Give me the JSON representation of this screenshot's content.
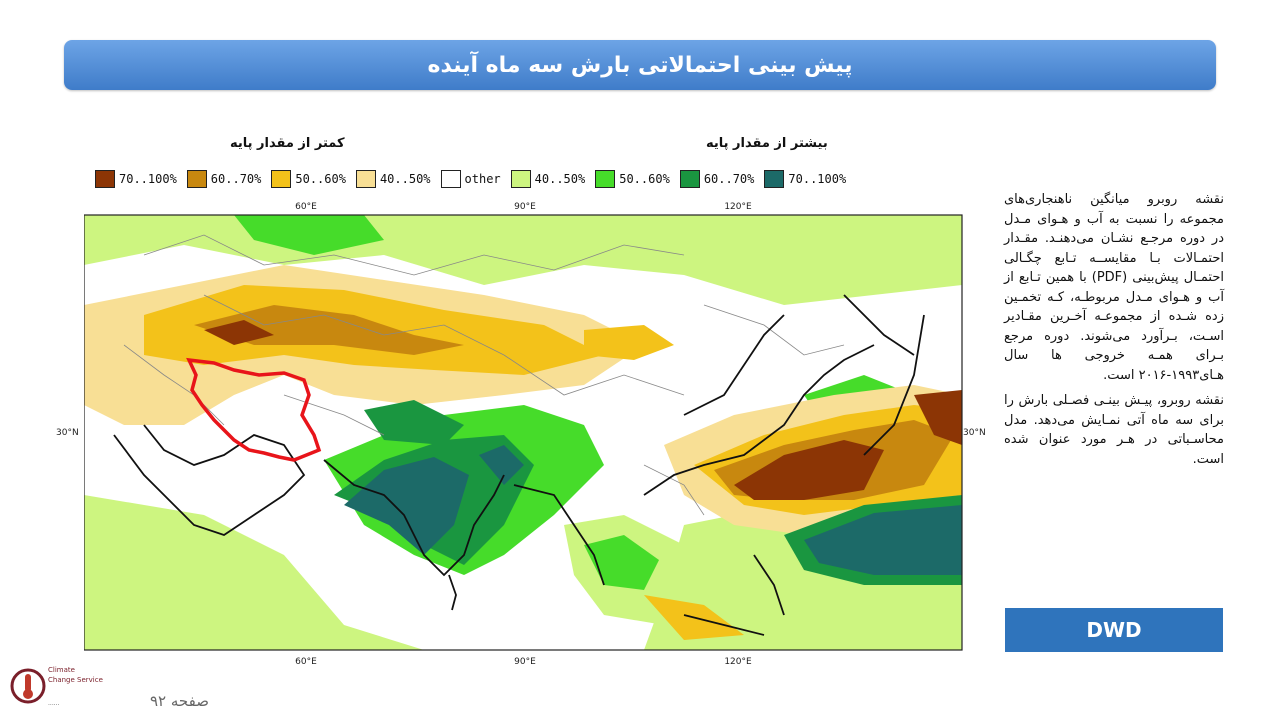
{
  "title": "پیش بینی احتمالاتی بارش سه ماه آینده",
  "legend": {
    "below_label": "کمتر از مقدار پایه",
    "above_label": "بیشتر از مقدار پایه",
    "items": [
      {
        "label": "70..100%",
        "color": "#8c3505"
      },
      {
        "label": "60..70%",
        "color": "#c8880f"
      },
      {
        "label": "50..60%",
        "color": "#f3c21a"
      },
      {
        "label": "40..50%",
        "color": "#f8df95"
      },
      {
        "label": "other",
        "color": "#ffffff"
      },
      {
        "label": "40..50%",
        "color": "#cdf580"
      },
      {
        "label": "50..60%",
        "color": "#46dc2a"
      },
      {
        "label": "60..70%",
        "color": "#1a9640"
      },
      {
        "label": "70..100%",
        "color": "#1c6a68"
      }
    ]
  },
  "map": {
    "top_ticks": [
      "60°E",
      "90°E",
      "120°E"
    ],
    "bottom_ticks": [
      "60°E",
      "90°E",
      "120°E"
    ],
    "left_tick": "30°N",
    "right_tick": "30°N",
    "highlight_region": "Iran",
    "highlight_color": "#e8141a"
  },
  "description": {
    "p1": "نقشه روبرو میانگین ناهنجاری‌های مجموعه را نسبت به آب و هـوای مـدل در دوره مرجـع نشـان می‌دهنـد. مقـدار احتمـالات بـا مقایســه تـابع چگـالی احتمـال پیش‌بینی (PDF) با همین تـابع از آب و هـوای مـدل مربوطـه، کـه تخمـین زده شـده از مجموعـه آخـرین مقـادیر اسـت، بـرآورد می‌شوند. دوره مرجع بـرای همـه خروجی ها سال هـای۱۹۹۳-۲۰۱۶ است.",
    "p2": "نقشه روبرو، پیـش بینـی فصـلی بارش را برای سه ماه آتی نمـایش می‌دهد. مدل محاسـباتی در هـر مورد عنوان شده است."
  },
  "model_label": "DWD",
  "logo": {
    "line1": "Climate",
    "line2": "Change Service",
    "line3": "......"
  },
  "page_number": "صفحه ۹۲"
}
